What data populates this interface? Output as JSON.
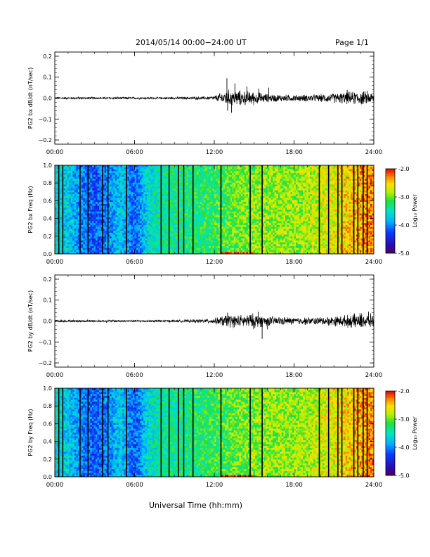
{
  "header": {
    "title": "2014/05/14  00:00−24:00 UT",
    "page": "Page 1/1"
  },
  "x_axis_title": "Universal Time (hh:mm)",
  "chart_data": [
    {
      "type": "line",
      "ylabel": "PG2 bx dB/dt (nT/sec)",
      "x_range_hours": [
        0,
        24
      ],
      "xticks": [
        "00:00",
        "06:00",
        "12:00",
        "18:00",
        "24:00"
      ],
      "ylim": [
        -0.22,
        0.22
      ],
      "yticks": [
        "0.2",
        "0.1",
        "0.0",
        "−0.1",
        "−0.2"
      ],
      "ytick_values": [
        0.2,
        0.1,
        0.0,
        -0.1,
        -0.2
      ],
      "envelope": {
        "hours": [
          0,
          2,
          4,
          6,
          8,
          10,
          11,
          12,
          12.5,
          13,
          14,
          15,
          16,
          18,
          20,
          21,
          22,
          23,
          24
        ],
        "amplitude": [
          0.004,
          0.004,
          0.004,
          0.004,
          0.004,
          0.005,
          0.006,
          0.008,
          0.02,
          0.03,
          0.028,
          0.025,
          0.015,
          0.012,
          0.014,
          0.018,
          0.022,
          0.026,
          0.02
        ]
      },
      "spikes": [
        {
          "hour": 12.95,
          "value": 0.095
        },
        {
          "hour": 13.0,
          "value": -0.06
        },
        {
          "hour": 13.3,
          "value": -0.07
        },
        {
          "hour": 13.55,
          "value": 0.07
        },
        {
          "hour": 14.45,
          "value": 0.055
        },
        {
          "hour": 15.35,
          "value": 0.045
        },
        {
          "hour": 16.1,
          "value": 0.05
        },
        {
          "hour": 22.0,
          "value": 0.04
        },
        {
          "hour": 23.5,
          "value": 0.035
        }
      ]
    },
    {
      "type": "heatmap",
      "ylabel": "PG2 bx Freq (Hz)",
      "x_range_hours": [
        0,
        24
      ],
      "xticks": [
        "00:00",
        "06:00",
        "12:00",
        "18:00",
        "24:00"
      ],
      "ylim": [
        0,
        1.0
      ],
      "yticks": [
        "1.0",
        "0.8",
        "0.6",
        "0.4",
        "0.2",
        "0.0"
      ],
      "ytick_values": [
        1.0,
        0.8,
        0.6,
        0.4,
        0.2,
        0.0
      ],
      "colorbar": {
        "label": "Log₁₀ Power",
        "range": [
          -5.0,
          -2.0
        ],
        "ticks": [
          "-2.0",
          "-3.0",
          "-4.0",
          "-5.0"
        ],
        "tick_values": [
          -2.0,
          -3.0,
          -4.0,
          -5.0
        ]
      },
      "power_profile": {
        "hours": [
          0,
          1,
          2,
          3,
          4,
          5,
          6,
          7,
          8,
          10,
          12,
          13,
          14,
          16,
          18,
          20,
          21,
          22,
          23,
          24
        ],
        "log_power": [
          -3.6,
          -3.7,
          -4.0,
          -4.2,
          -4.0,
          -3.7,
          -4.2,
          -3.6,
          -3.4,
          -3.3,
          -3.2,
          -3.1,
          -3.0,
          -2.9,
          -2.9,
          -2.75,
          -2.65,
          -2.55,
          -2.4,
          -2.3
        ]
      },
      "data_gaps_hours": [
        0.3,
        0.6,
        1.9,
        2.5,
        3.6,
        4.0,
        5.4,
        8.0,
        8.6,
        9.3,
        9.7,
        10.4,
        12.5,
        14.7,
        15.6,
        19.9,
        20.6,
        21.3,
        21.6,
        22.5,
        22.8,
        23.2,
        23.5
      ]
    },
    {
      "type": "line",
      "ylabel": "PG2 by dB/dt (nT/sec)",
      "x_range_hours": [
        0,
        24
      ],
      "xticks": [
        "00:00",
        "06:00",
        "12:00",
        "18:00",
        "24:00"
      ],
      "ylim": [
        -0.22,
        0.22
      ],
      "yticks": [
        "0.2",
        "0.1",
        "0.0",
        "−0.1",
        "−0.2"
      ],
      "ytick_values": [
        0.2,
        0.1,
        0.0,
        -0.1,
        -0.2
      ],
      "envelope": {
        "hours": [
          0,
          2,
          4,
          6,
          8,
          10,
          11,
          12,
          12.5,
          13,
          14,
          15,
          16,
          18,
          20,
          21,
          22,
          23,
          24
        ],
        "amplitude": [
          0.004,
          0.004,
          0.004,
          0.004,
          0.004,
          0.005,
          0.007,
          0.01,
          0.018,
          0.025,
          0.022,
          0.028,
          0.018,
          0.013,
          0.015,
          0.018,
          0.022,
          0.03,
          0.025
        ]
      },
      "spikes": [
        {
          "hour": 13.0,
          "value": 0.04
        },
        {
          "hour": 15.3,
          "value": 0.045
        },
        {
          "hour": 15.6,
          "value": -0.085
        },
        {
          "hour": 16.0,
          "value": -0.04
        },
        {
          "hour": 23.6,
          "value": 0.045
        }
      ]
    },
    {
      "type": "heatmap",
      "ylabel": "PG2 by Freq (Hz)",
      "x_range_hours": [
        0,
        24
      ],
      "xticks": [
        "00:00",
        "06:00",
        "12:00",
        "18:00",
        "24:00"
      ],
      "ylim": [
        0,
        1.0
      ],
      "yticks": [
        "1.0",
        "0.8",
        "0.6",
        "0.4",
        "0.2",
        "0.0"
      ],
      "ytick_values": [
        1.0,
        0.8,
        0.6,
        0.4,
        0.2,
        0.0
      ],
      "colorbar": {
        "label": "Log₁₀ Power",
        "range": [
          -5.0,
          -2.0
        ],
        "ticks": [
          "-2.0",
          "-3.0",
          "-4.0",
          "-5.0"
        ],
        "tick_values": [
          -2.0,
          -3.0,
          -4.0,
          -5.0
        ]
      },
      "power_profile": {
        "hours": [
          0,
          1,
          2,
          3,
          4,
          5,
          6,
          7,
          8,
          10,
          12,
          13,
          14,
          16,
          18,
          20,
          21,
          22,
          23,
          24
        ],
        "log_power": [
          -3.6,
          -3.7,
          -4.0,
          -4.2,
          -4.0,
          -3.7,
          -4.2,
          -3.6,
          -3.4,
          -3.3,
          -3.2,
          -3.1,
          -3.0,
          -2.9,
          -2.9,
          -2.75,
          -2.65,
          -2.55,
          -2.4,
          -2.3
        ]
      },
      "data_gaps_hours": [
        0.3,
        0.6,
        1.9,
        2.5,
        3.6,
        4.0,
        5.4,
        8.0,
        8.6,
        9.3,
        9.7,
        10.4,
        12.5,
        14.7,
        15.6,
        19.9,
        20.6,
        21.3,
        21.6,
        22.5,
        22.8,
        23.2,
        23.5
      ]
    }
  ]
}
